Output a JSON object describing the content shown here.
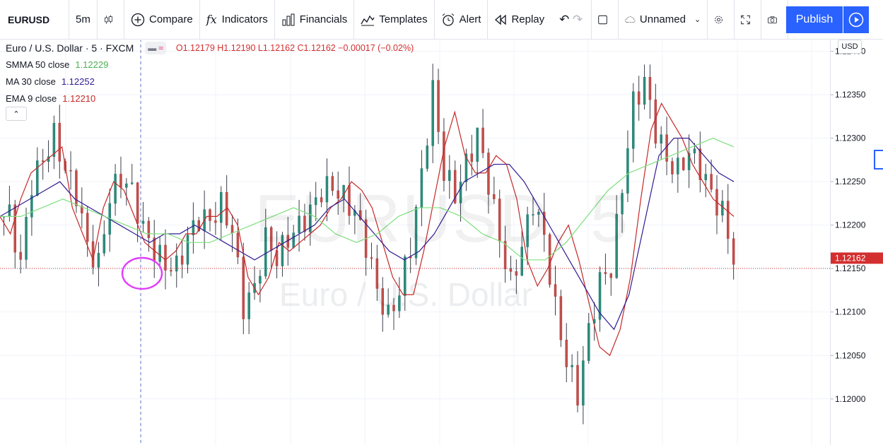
{
  "toolbar": {
    "symbol": "EURUSD",
    "interval": "5m",
    "compare": "Compare",
    "indicators": "Indicators",
    "financials": "Financials",
    "templates": "Templates",
    "alert": "Alert",
    "replay": "Replay",
    "layout_name": "Unnamed",
    "publish": "Publish"
  },
  "legend": {
    "title": "Euro / U.S. Dollar · 5 · FXCM",
    "ohlc": "O1.12179  H1.12190  L1.12162  C1.12162  −0.00017 (−0.02%)",
    "indicators": [
      {
        "label": "SMMA 50 close",
        "value": "1.12229",
        "color": "#4caf50"
      },
      {
        "label": "MA 30 close",
        "value": "1.12252",
        "color": "#311b92"
      },
      {
        "label": "EMA 9 close",
        "value": "1.12210",
        "color": "#c62828"
      }
    ]
  },
  "currency": "USD",
  "watermark": {
    "symbol": "EURUSD, 5",
    "name": "Euro / U.S. Dollar"
  },
  "chart_data": {
    "type": "candlestick",
    "ylim": [
      1.1196,
      1.1242
    ],
    "price_ticks": [
      "1.12400",
      "1.12350",
      "1.12300",
      "1.12250",
      "1.12200",
      "1.12150",
      "1.12100",
      "1.12050",
      "1.12000"
    ],
    "last_price": "1.12162",
    "last_price_color": "#d32f2f",
    "series": [
      {
        "name": "EMA 9 close",
        "color": "#c62828",
        "values": [
          1.1221,
          1.1219,
          1.1223,
          1.1226,
          1.1227,
          1.1228,
          1.1229,
          1.1222,
          1.1219,
          1.1216,
          1.1222,
          1.1225,
          1.1224,
          1.1221,
          1.1218,
          1.1217,
          1.1216,
          1.1217,
          1.1219,
          1.1219,
          1.1221,
          1.1221,
          1.1222,
          1.122,
          1.1214,
          1.1212,
          1.1214,
          1.1218,
          1.1217,
          1.1218,
          1.1219,
          1.122,
          1.1222,
          1.1223,
          1.1225,
          1.1224,
          1.1222,
          1.1218,
          1.1214,
          1.1212,
          1.1212,
          1.1217,
          1.1223,
          1.1229,
          1.1233,
          1.1228,
          1.1226,
          1.1226,
          1.1228,
          1.1227,
          1.1223,
          1.1216,
          1.1213,
          1.1215,
          1.1218,
          1.122,
          1.1216,
          1.1211,
          1.1206,
          1.1205,
          1.1208,
          1.1214,
          1.1223,
          1.1231,
          1.1234,
          1.1232,
          1.123,
          1.1227,
          1.1225,
          1.1223,
          1.1222,
          1.1221
        ]
      },
      {
        "name": "MA 30 close",
        "color": "#311b92",
        "values": [
          1.1221,
          1.1222,
          1.1223,
          1.1224,
          1.1225,
          1.1223,
          1.1222,
          1.1221,
          1.122,
          1.1219,
          1.1218,
          1.1219,
          1.1219,
          1.122,
          1.1219,
          1.1218,
          1.1217,
          1.1216,
          1.1217,
          1.1218,
          1.1219,
          1.122,
          1.1222,
          1.1223,
          1.1221,
          1.1219,
          1.1217,
          1.1216,
          1.1217,
          1.1219,
          1.1222,
          1.1225,
          1.1226,
          1.1227,
          1.1227,
          1.1225,
          1.1222,
          1.1219,
          1.1216,
          1.1213,
          1.121,
          1.1208,
          1.1212,
          1.122,
          1.1228,
          1.123,
          1.123,
          1.1228,
          1.1226,
          1.1225
        ]
      },
      {
        "name": "SMMA 50 close",
        "color": "#7ee07e",
        "values": [
          1.1221,
          1.1221,
          1.1222,
          1.1223,
          1.1222,
          1.1221,
          1.122,
          1.1219,
          1.1219,
          1.1218,
          1.1218,
          1.1219,
          1.122,
          1.1221,
          1.1222,
          1.1221,
          1.1219,
          1.1218,
          1.1219,
          1.1221,
          1.1222,
          1.1222,
          1.1221,
          1.1219,
          1.1218,
          1.1216,
          1.1216,
          1.1218,
          1.1221,
          1.1224,
          1.1226,
          1.1227,
          1.1228,
          1.1229,
          1.123,
          1.1229
        ]
      }
    ]
  }
}
